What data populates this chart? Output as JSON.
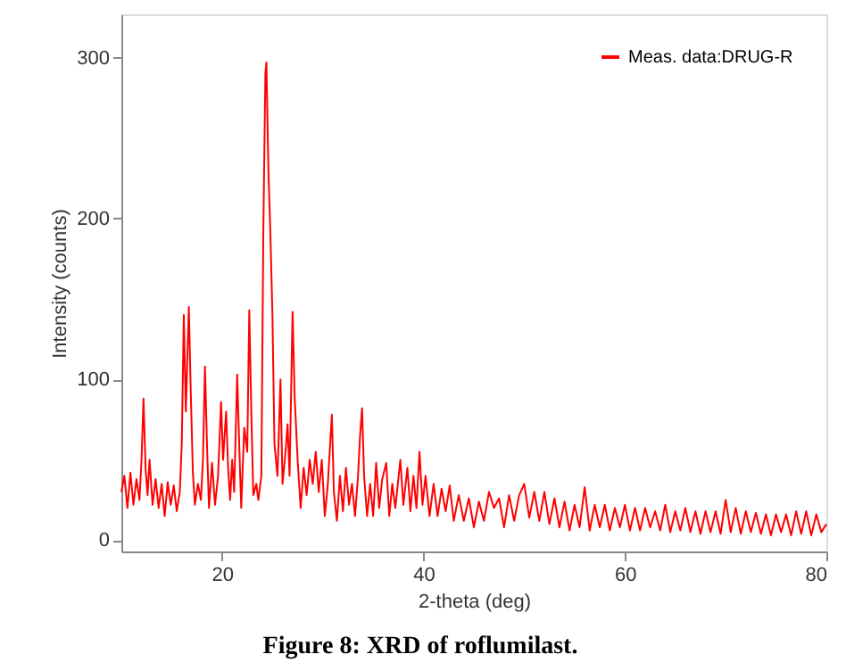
{
  "chart_data": {
    "type": "line",
    "xlabel": "2-theta (deg)",
    "ylabel": "Intensity (counts)",
    "annotations": [
      "Figure 8: XRD of roflumilast."
    ],
    "xlim": [
      10,
      80
    ],
    "ylim": [
      -7,
      327
    ],
    "xticks": [
      20,
      40,
      60,
      80
    ],
    "yticks": [
      0,
      100,
      200,
      300
    ],
    "grid": false,
    "legend": "top right",
    "marker": "none",
    "line_style": "solid",
    "x": [
      10.0,
      10.3,
      10.6,
      10.9,
      11.2,
      11.5,
      11.8,
      12.0,
      12.2,
      12.4,
      12.6,
      12.8,
      13.1,
      13.4,
      13.7,
      14.0,
      14.3,
      14.6,
      14.9,
      15.2,
      15.5,
      15.8,
      16.0,
      16.2,
      16.4,
      16.7,
      16.9,
      17.1,
      17.3,
      17.6,
      17.9,
      18.1,
      18.3,
      18.5,
      18.7,
      19.0,
      19.3,
      19.6,
      19.9,
      20.1,
      20.4,
      20.6,
      20.8,
      21.0,
      21.2,
      21.5,
      21.7,
      21.9,
      22.2,
      22.5,
      22.7,
      22.9,
      23.1,
      23.4,
      23.6,
      23.9,
      24.1,
      24.3,
      24.4,
      24.6,
      24.8,
      25.0,
      25.2,
      25.5,
      25.8,
      26.0,
      26.3,
      26.5,
      26.7,
      27.0,
      27.2,
      27.5,
      27.8,
      28.1,
      28.4,
      28.7,
      29.0,
      29.3,
      29.6,
      29.9,
      30.2,
      30.5,
      30.9,
      31.1,
      31.4,
      31.7,
      32.0,
      32.3,
      32.6,
      32.9,
      33.2,
      33.5,
      33.7,
      33.9,
      34.1,
      34.4,
      34.7,
      35.0,
      35.3,
      35.6,
      35.9,
      36.3,
      36.6,
      36.9,
      37.2,
      37.7,
      38.0,
      38.4,
      38.7,
      39.0,
      39.3,
      39.6,
      39.9,
      40.2,
      40.6,
      41.0,
      41.4,
      41.8,
      42.2,
      42.6,
      43.0,
      43.5,
      44.0,
      44.5,
      45.0,
      45.5,
      46.0,
      46.5,
      47.0,
      47.5,
      48.0,
      48.5,
      49.0,
      49.5,
      50.0,
      50.5,
      51.0,
      51.5,
      52.0,
      52.5,
      53.0,
      53.5,
      54.0,
      54.5,
      55.0,
      55.5,
      56.0,
      56.5,
      57.0,
      57.5,
      58.0,
      58.5,
      59.0,
      59.5,
      60.0,
      60.5,
      61.0,
      61.5,
      62.0,
      62.5,
      63.0,
      63.5,
      64.0,
      64.5,
      65.0,
      65.5,
      66.0,
      66.5,
      67.0,
      67.5,
      68.0,
      68.5,
      69.0,
      69.5,
      70.0,
      70.5,
      71.0,
      71.5,
      72.0,
      72.5,
      73.0,
      73.5,
      74.0,
      74.5,
      75.0,
      75.5,
      76.0,
      76.5,
      77.0,
      77.5,
      78.0,
      78.5,
      79.0,
      79.5,
      80.0
    ],
    "series": [
      {
        "name": "Meas. data:DRUG-R",
        "color": "#ff0000",
        "values": [
          30,
          40,
          20,
          42,
          22,
          38,
          25,
          50,
          88,
          45,
          28,
          50,
          22,
          38,
          20,
          35,
          15,
          36,
          22,
          34,
          18,
          30,
          60,
          140,
          80,
          145,
          90,
          42,
          22,
          35,
          25,
          50,
          108,
          60,
          20,
          48,
          22,
          40,
          86,
          50,
          80,
          45,
          25,
          50,
          30,
          103,
          60,
          20,
          70,
          55,
          143,
          80,
          28,
          35,
          25,
          40,
          195,
          290,
          297,
          230,
          190,
          140,
          60,
          40,
          100,
          35,
          55,
          72,
          40,
          142,
          90,
          50,
          20,
          45,
          28,
          50,
          35,
          55,
          30,
          50,
          15,
          35,
          78,
          30,
          12,
          40,
          18,
          45,
          22,
          35,
          15,
          40,
          65,
          82,
          40,
          15,
          35,
          15,
          48,
          20,
          38,
          48,
          15,
          35,
          20,
          50,
          22,
          45,
          18,
          40,
          20,
          55,
          22,
          40,
          15,
          35,
          15,
          32,
          18,
          34,
          12,
          28,
          12,
          26,
          8,
          24,
          12,
          30,
          20,
          26,
          8,
          28,
          12,
          28,
          35,
          14,
          30,
          12,
          30,
          10,
          26,
          8,
          24,
          6,
          22,
          8,
          33,
          6,
          22,
          8,
          22,
          6,
          20,
          8,
          22,
          6,
          20,
          6,
          20,
          8,
          18,
          6,
          22,
          5,
          18,
          6,
          20,
          5,
          18,
          4,
          18,
          5,
          18,
          4,
          25,
          5,
          20,
          4,
          18,
          5,
          17,
          4,
          16,
          3,
          16,
          5,
          16,
          3,
          18,
          4,
          18,
          3,
          16,
          5,
          10
        ]
      }
    ]
  }
}
